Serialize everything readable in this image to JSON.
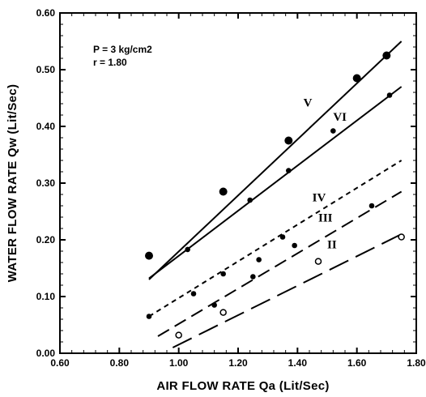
{
  "chart_data": {
    "type": "line",
    "xlabel": "AIR FLOW RATE Qa  (Lit/Sec)",
    "ylabel": "WATER FLOW RATE Qw (Lit/Sec)",
    "xlim": [
      0.6,
      1.8
    ],
    "ylim": [
      0.0,
      0.6
    ],
    "xticks": [
      "0.60",
      "0.80",
      "1.00",
      "1.20",
      "1.40",
      "1.60",
      "1.80"
    ],
    "yticks": [
      "0.00",
      "0.10",
      "0.20",
      "0.30",
      "0.40",
      "0.50",
      "0.60"
    ],
    "annotations": [
      "P = 3 kg/cm2",
      "r = 1.80"
    ],
    "grid": false,
    "series": [
      {
        "name": "V",
        "line_style": "solid",
        "marker": "filled-circle",
        "color": "#000000",
        "fit": [
          [
            0.9,
            0.13
          ],
          [
            1.75,
            0.55
          ]
        ],
        "points": [
          [
            0.9,
            0.172
          ],
          [
            1.15,
            0.285
          ],
          [
            1.37,
            0.375
          ],
          [
            1.6,
            0.485
          ],
          [
            1.7,
            0.525
          ]
        ],
        "label_at": [
          1.42,
          0.435
        ]
      },
      {
        "name": "VI",
        "line_style": "solid",
        "marker": "small-dot",
        "color": "#000000",
        "fit": [
          [
            0.9,
            0.132
          ],
          [
            1.75,
            0.47
          ]
        ],
        "points": [
          [
            1.03,
            0.183
          ],
          [
            1.24,
            0.27
          ],
          [
            1.37,
            0.322
          ],
          [
            1.52,
            0.392
          ],
          [
            1.71,
            0.455
          ]
        ],
        "label_at": [
          1.52,
          0.41
        ]
      },
      {
        "name": "IV",
        "line_style": "short-dash",
        "marker": "small-dot",
        "color": "#000000",
        "fit": [
          [
            0.9,
            0.065
          ],
          [
            1.75,
            0.34
          ]
        ],
        "points": [
          [
            0.9,
            0.065
          ],
          [
            1.05,
            0.105
          ],
          [
            1.15,
            0.14
          ],
          [
            1.27,
            0.165
          ],
          [
            1.35,
            0.205
          ]
        ],
        "label_at": [
          1.45,
          0.268
        ]
      },
      {
        "name": "III",
        "line_style": "long-dash",
        "marker": "small-dot",
        "color": "#000000",
        "fit": [
          [
            0.93,
            0.03
          ],
          [
            1.75,
            0.285
          ]
        ],
        "points": [
          [
            1.12,
            0.085
          ],
          [
            1.25,
            0.135
          ],
          [
            1.39,
            0.19
          ],
          [
            1.65,
            0.26
          ]
        ],
        "label_at": [
          1.47,
          0.232
        ]
      },
      {
        "name": "II",
        "line_style": "extra-long-dash",
        "marker": "open-circle",
        "color": "#000000",
        "fit": [
          [
            0.98,
            0.01
          ],
          [
            1.75,
            0.21
          ]
        ],
        "points": [
          [
            1.0,
            0.032
          ],
          [
            1.15,
            0.072
          ],
          [
            1.47,
            0.162
          ],
          [
            1.75,
            0.205
          ]
        ],
        "label_at": [
          1.5,
          0.185
        ]
      }
    ]
  }
}
